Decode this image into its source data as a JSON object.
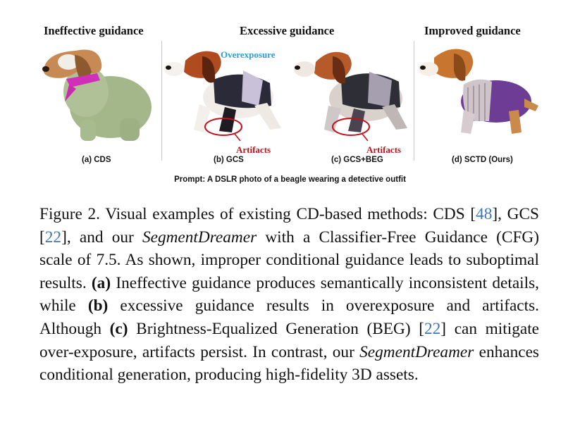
{
  "figure": {
    "group_titles": {
      "ineffective": "Ineffective guidance",
      "excessive": "Excessive guidance",
      "improved": "Improved guidance"
    },
    "panels": [
      {
        "caption": "(a) CDS",
        "image": "beagle with green textured body and pink scarf"
      },
      {
        "caption": "(b) GCS",
        "image": "overexposed beagle wearing dark vest"
      },
      {
        "caption": "(c) GCS+BEG",
        "image": "beagle wearing dark vest and grey pants"
      },
      {
        "caption": "(d) SCTD (Ours)",
        "image": "beagle wearing purple detective jacket"
      }
    ],
    "annotations": {
      "overexposure": "Overexposure",
      "artifacts_b": "Artifacts",
      "artifacts_c": "Artifacts"
    },
    "prompt": "Prompt: A DSLR photo of a beagle wearing a detective outfit",
    "colors": {
      "overexposure": "#2f9bd6",
      "artifacts": "#c2121b",
      "citation": "#3b78b5"
    }
  },
  "caption": {
    "label": "Figure 2.",
    "t1": "Visual examples of existing CD-based methods: CDS [",
    "c1": "48",
    "t2": "], GCS [",
    "c2": "22",
    "t3": "], and our ",
    "i1": "SegmentDreamer",
    "t4": " with a Classifier-Free Guidance (CFG) scale of 7.5.  As shown, improper conditional guidance leads to suboptimal results.  ",
    "b1": "(a)",
    "t5": " Ineffective guidance produces semantically inconsistent details, while ",
    "b2": "(b)",
    "t6": " excessive guidance results in overexposure and artifacts.  Although ",
    "b3": "(c)",
    "t7": " Brightness-Equalized Generation (BEG) [",
    "c3": "22",
    "t8": "] can mitigate over-exposure, artifacts persist.  In contrast, our ",
    "i2": "SegmentDreamer",
    "t9": " enhances conditional generation, producing high-fidelity 3D assets."
  }
}
